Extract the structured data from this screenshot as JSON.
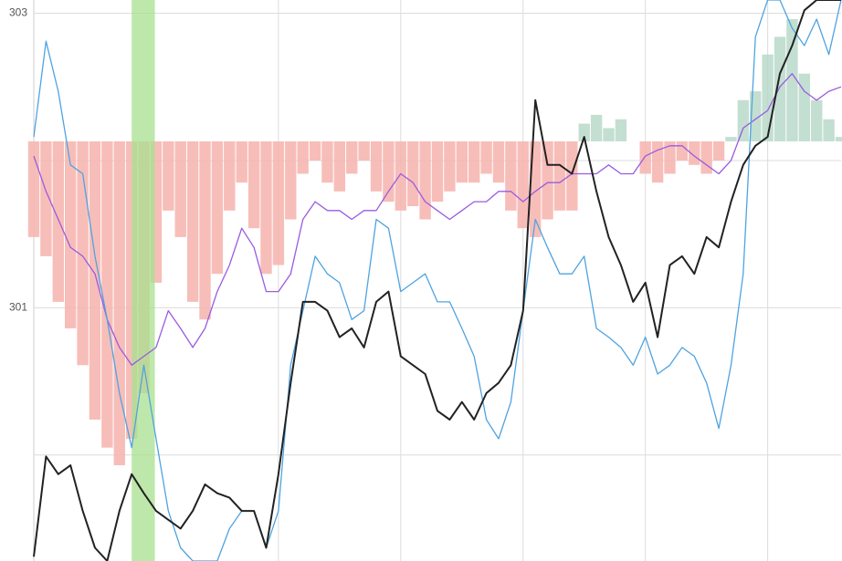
{
  "chart_data": {
    "type": "line",
    "x": [
      0,
      1,
      2,
      3,
      4,
      5,
      6,
      7,
      8,
      9,
      10,
      11,
      12,
      13,
      14,
      15,
      16,
      17,
      18,
      19,
      20,
      21,
      22,
      23,
      24,
      25,
      26,
      27,
      28,
      29,
      30,
      31,
      32,
      33,
      34,
      35,
      36,
      37,
      38,
      39,
      40,
      41,
      42,
      43,
      44,
      45,
      46,
      47,
      48,
      49,
      50,
      51,
      52,
      53,
      54,
      55,
      56,
      57,
      58,
      59,
      60,
      61,
      62,
      63,
      64,
      65,
      66
    ],
    "xlim": [
      0,
      66
    ],
    "xgrid": [
      20,
      30,
      40,
      50,
      60
    ],
    "ylim": [
      299.28,
      303.09
    ],
    "yticks": [
      301,
      303
    ],
    "minor_ygrid": [
      300,
      302
    ],
    "grid": true,
    "highlight": {
      "x": [
        8,
        9.9
      ],
      "color": "#a8e08f"
    },
    "bars": {
      "base": 302.13,
      "up_color": "#b9d9c9",
      "down_color": "#f6b3ad",
      "values": [
        301.48,
        301.35,
        301.04,
        300.86,
        300.61,
        300.24,
        300.05,
        299.93,
        300.11,
        300.42,
        301.17,
        301.66,
        301.48,
        301.04,
        300.92,
        301.23,
        301.66,
        301.85,
        301.54,
        301.23,
        301.29,
        301.6,
        301.91,
        302.0,
        301.85,
        301.79,
        301.91,
        302.0,
        301.79,
        301.72,
        301.66,
        301.69,
        301.6,
        301.72,
        301.79,
        301.85,
        301.85,
        301.91,
        301.85,
        301.66,
        301.54,
        301.48,
        301.6,
        301.66,
        301.66,
        302.25,
        302.31,
        302.22,
        302.28,
        302.13,
        301.91,
        301.85,
        301.91,
        302.0,
        301.97,
        301.91,
        302.0,
        302.16,
        302.41,
        302.47,
        302.72,
        302.84,
        302.96,
        302.59,
        302.41,
        302.28,
        302.16
      ]
    },
    "series": [
      {
        "color": "#9a5be0",
        "width": 1.3,
        "values": [
          302.03,
          301.79,
          301.6,
          301.41,
          301.35,
          301.23,
          300.92,
          300.73,
          300.61,
          300.67,
          300.73,
          300.98,
          300.86,
          300.73,
          300.86,
          301.11,
          301.29,
          301.54,
          301.41,
          301.11,
          301.11,
          301.23,
          301.6,
          301.72,
          301.66,
          301.66,
          301.6,
          301.66,
          301.66,
          301.79,
          301.91,
          301.85,
          301.72,
          301.66,
          301.6,
          301.66,
          301.72,
          301.72,
          301.79,
          301.79,
          301.72,
          301.79,
          301.85,
          301.85,
          301.91,
          301.91,
          301.91,
          301.97,
          301.91,
          301.91,
          302.03,
          302.07,
          302.1,
          302.1,
          302.03,
          301.97,
          301.91,
          302.0,
          302.22,
          302.28,
          302.34,
          302.5,
          302.59,
          302.47,
          302.41,
          302.47,
          302.5
        ]
      },
      {
        "color": "#4fa3e0",
        "width": 1.3,
        "values": [
          302.16,
          302.81,
          302.47,
          301.97,
          301.91,
          301.35,
          300.92,
          300.42,
          300.05,
          300.61,
          300.11,
          299.62,
          299.37,
          299.28,
          299.28,
          299.28,
          299.5,
          299.62,
          299.62,
          299.37,
          299.62,
          300.61,
          300.98,
          301.35,
          301.23,
          301.17,
          300.92,
          300.98,
          301.6,
          301.54,
          301.11,
          301.17,
          301.23,
          301.04,
          301.04,
          300.86,
          300.67,
          300.24,
          300.11,
          300.36,
          300.98,
          301.6,
          301.41,
          301.23,
          301.23,
          301.35,
          300.86,
          300.8,
          300.73,
          300.61,
          300.8,
          300.55,
          300.61,
          300.73,
          300.67,
          300.49,
          300.18,
          300.61,
          301.23,
          302.84,
          303.09,
          303.09,
          302.9,
          302.78,
          302.96,
          302.72,
          303.09
        ]
      },
      {
        "color": "#222222",
        "width": 2,
        "values": [
          299.31,
          299.99,
          299.87,
          299.93,
          299.62,
          299.37,
          299.28,
          299.62,
          299.87,
          299.74,
          299.62,
          299.56,
          299.5,
          299.62,
          299.8,
          299.74,
          299.71,
          299.62,
          299.62,
          299.37,
          299.87,
          300.49,
          301.04,
          301.04,
          300.98,
          300.8,
          300.86,
          300.73,
          301.04,
          301.11,
          300.67,
          300.61,
          300.55,
          300.3,
          300.24,
          300.36,
          300.24,
          300.42,
          300.49,
          300.61,
          300.98,
          302.41,
          301.97,
          301.97,
          301.91,
          302.16,
          301.79,
          301.48,
          301.29,
          301.04,
          301.17,
          300.8,
          301.29,
          301.35,
          301.23,
          301.48,
          301.41,
          301.72,
          301.97,
          302.1,
          302.16,
          302.59,
          302.78,
          303.02,
          303.09,
          303.09,
          303.09
        ]
      }
    ]
  }
}
